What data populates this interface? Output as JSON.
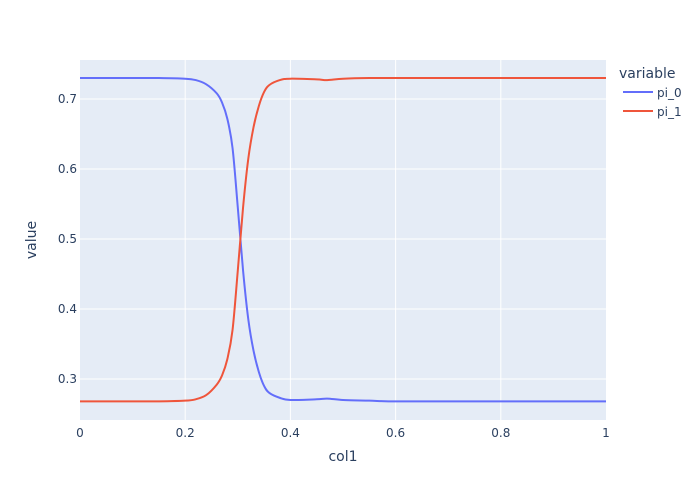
{
  "chart_data": {
    "type": "line",
    "title": "",
    "xlabel": "col1",
    "ylabel": "value",
    "xlim": [
      0,
      1
    ],
    "ylim": [
      0.2414,
      0.7557
    ],
    "xticks": [
      "0",
      "0.2",
      "0.4",
      "0.6",
      "0.8",
      "1"
    ],
    "yticks": [
      "0.3",
      "0.4",
      "0.5",
      "0.6",
      "0.7"
    ],
    "grid": true,
    "legend_title": "variable",
    "legend_position": "right",
    "background": "#e5ecf6",
    "x": [
      0,
      0.05,
      0.1,
      0.15,
      0.2,
      0.22,
      0.24,
      0.26,
      0.27,
      0.28,
      0.29,
      0.3,
      0.31,
      0.32,
      0.33,
      0.34,
      0.35,
      0.36,
      0.38,
      0.4,
      0.45,
      0.47,
      0.5,
      0.55,
      0.6,
      0.7,
      0.8,
      0.9,
      1
    ],
    "series": [
      {
        "name": "pi_0",
        "color": "#636efa",
        "values": [
          0.73,
          0.73,
          0.73,
          0.73,
          0.729,
          0.727,
          0.721,
          0.708,
          0.695,
          0.672,
          0.63,
          0.545,
          0.455,
          0.385,
          0.34,
          0.31,
          0.29,
          0.28,
          0.273,
          0.27,
          0.271,
          0.272,
          0.27,
          0.269,
          0.268,
          0.268,
          0.268,
          0.268,
          0.268
        ]
      },
      {
        "name": "pi_1",
        "color": "#ef553b",
        "values": [
          0.268,
          0.268,
          0.268,
          0.268,
          0.269,
          0.271,
          0.277,
          0.292,
          0.305,
          0.328,
          0.37,
          0.455,
          0.545,
          0.615,
          0.66,
          0.69,
          0.71,
          0.72,
          0.727,
          0.729,
          0.728,
          0.727,
          0.729,
          0.73,
          0.73,
          0.73,
          0.73,
          0.73,
          0.73
        ]
      }
    ]
  }
}
